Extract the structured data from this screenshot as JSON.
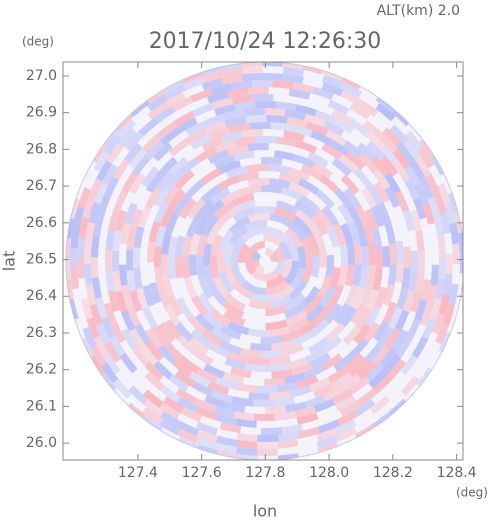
{
  "chart_data": {
    "type": "radar-ppi",
    "title": "2017/10/24 12:26:30",
    "subtitle": "ALT(km) 2.0",
    "x_label": "lon",
    "y_label": "lat",
    "x_unit": "(deg)",
    "y_unit": "(deg)",
    "xlim": [
      127.165,
      128.42
    ],
    "ylim": [
      25.954,
      27.038
    ],
    "xticks": [
      127.4,
      127.6,
      127.8,
      {
        "value": 128,
        "label": "128.0"
      },
      128.2,
      128.4
    ],
    "yticks": [
      {
        "value": 26,
        "label": "26.0"
      },
      26.1,
      26.2,
      26.3,
      26.4,
      26.5,
      26.6,
      26.7,
      26.8,
      26.9,
      {
        "value": 27,
        "label": "27.0"
      }
    ]
  }
}
